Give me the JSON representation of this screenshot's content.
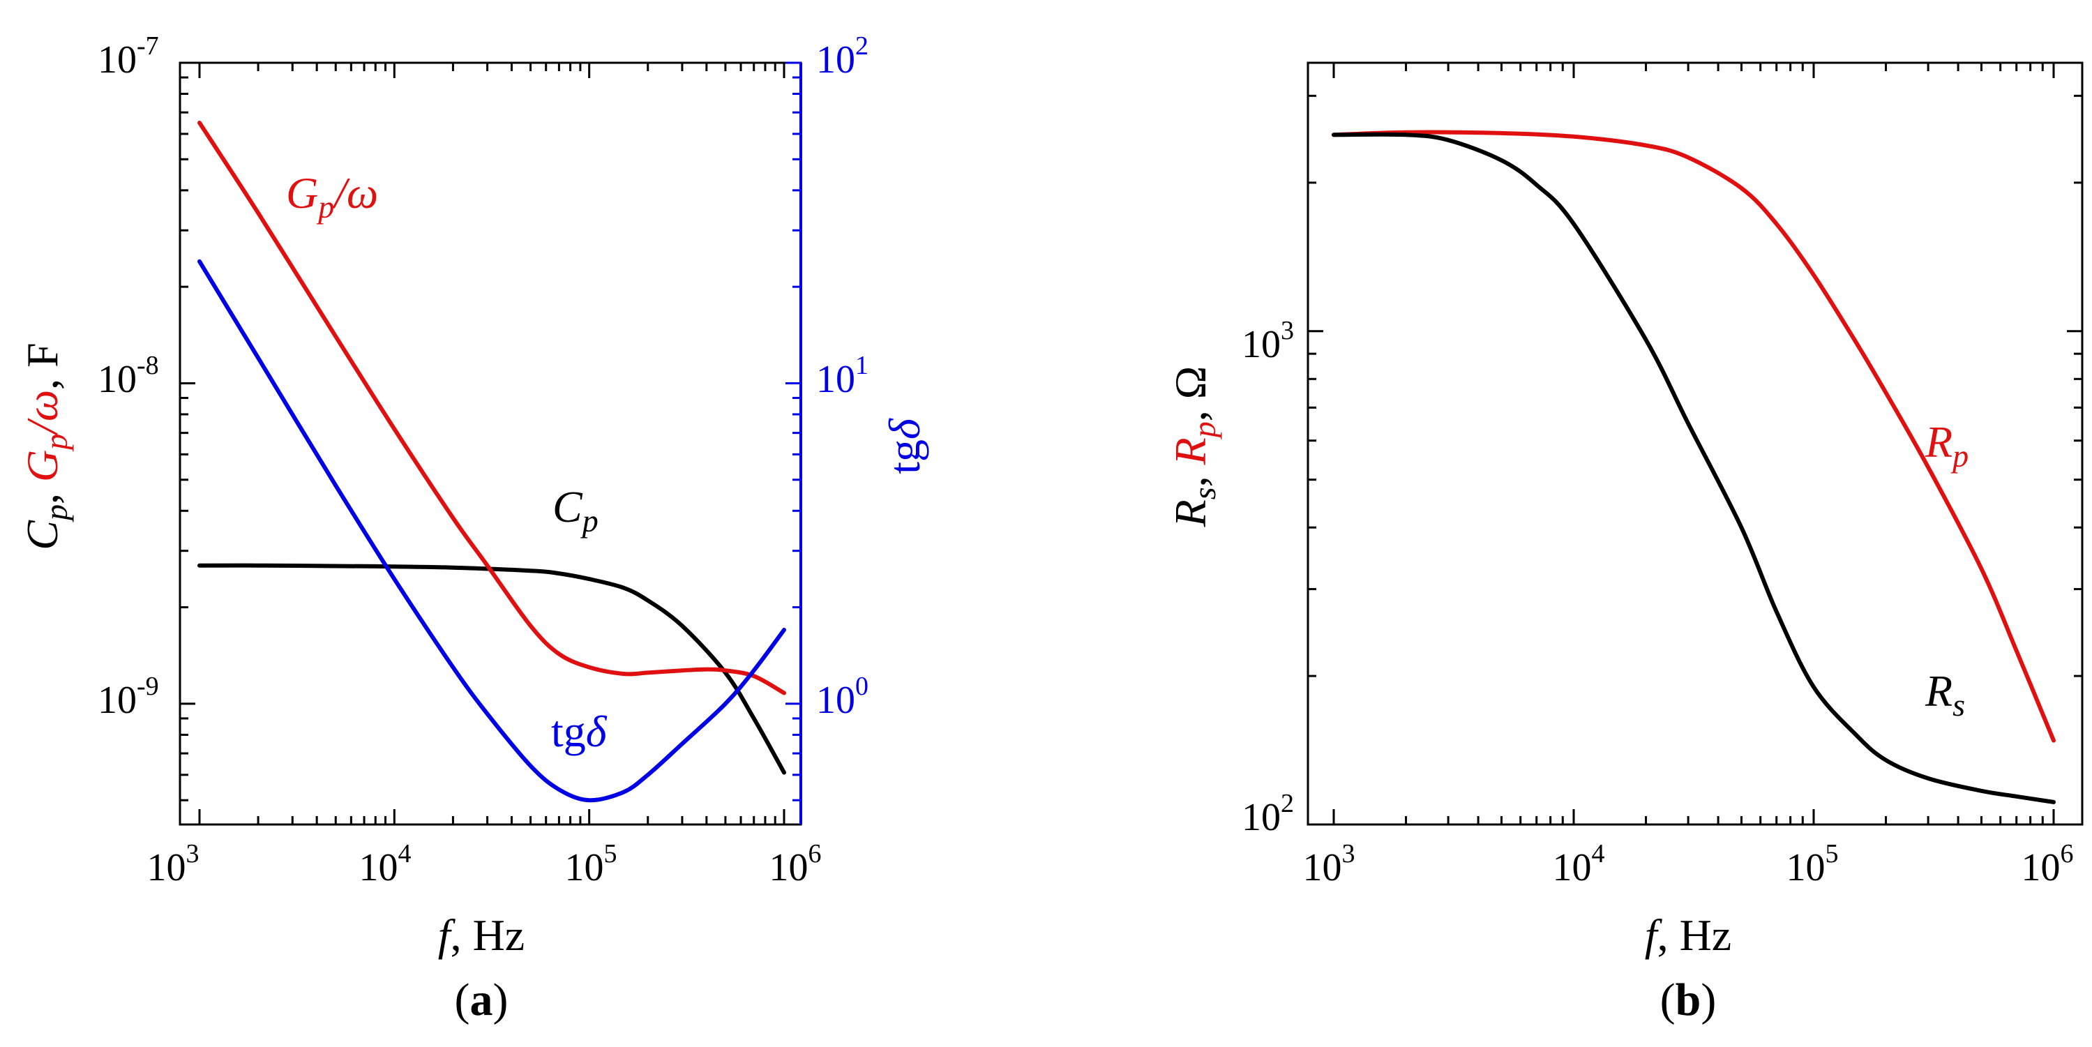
{
  "figure": {
    "panel_labels": [
      {
        "open": "(",
        "letter": "a",
        "close": ")"
      },
      {
        "open": "(",
        "letter": "b",
        "close": ")"
      }
    ]
  },
  "colors": {
    "black": "#000000",
    "red": "#e01010",
    "blue": "#0000e6"
  },
  "chart_data": [
    {
      "panel": "a",
      "type": "line",
      "x_scale": "log",
      "y_scale": "log",
      "y2_scale": "log",
      "xlim": [
        1000,
        1000000
      ],
      "ylim": [
        4.2e-10,
        1e-07
      ],
      "y2lim": [
        0.42,
        100
      ],
      "x_ticks": [
        {
          "value": 1000,
          "base": "10",
          "exp": "3"
        },
        {
          "value": 10000,
          "base": "10",
          "exp": "4"
        },
        {
          "value": 100000,
          "base": "10",
          "exp": "5"
        },
        {
          "value": 1000000,
          "base": "10",
          "exp": "6"
        }
      ],
      "y_ticks": [
        {
          "value": 1e-09,
          "base": "10",
          "exp": "-9"
        },
        {
          "value": 1e-08,
          "base": "10",
          "exp": "-8"
        },
        {
          "value": 1e-07,
          "base": "10",
          "exp": "-7"
        }
      ],
      "y2_ticks": [
        {
          "value": 1,
          "base": "10",
          "exp": "0"
        },
        {
          "value": 10,
          "base": "10",
          "exp": "1"
        },
        {
          "value": 100,
          "base": "10",
          "exp": "2"
        }
      ],
      "xlabel": {
        "var": "f",
        "rest": ", Hz"
      },
      "ylabel": {
        "c_main": "C",
        "c_sub": "p",
        "sep1": ", ",
        "g_main": "G",
        "g_sub": "p",
        "g_over": "/ω",
        "sep2": ", ",
        "unit": "F"
      },
      "y2label": {
        "main": "tg",
        "greek": "δ"
      },
      "series": [
        {
          "key": "Cp",
          "label_main": "C",
          "label_sub": "p",
          "color": "#000000",
          "axis": "left",
          "x": [
            1000,
            2000,
            5000,
            10000,
            20000,
            50000,
            70000,
            100000,
            150000,
            200000,
            300000,
            500000,
            700000,
            1000000
          ],
          "y": [
            2.7e-09,
            2.7e-09,
            2.69e-09,
            2.68e-09,
            2.66e-09,
            2.6e-09,
            2.55e-09,
            2.45e-09,
            2.3e-09,
            2.1e-09,
            1.75e-09,
            1.25e-09,
            9e-10,
            6.1e-10
          ]
        },
        {
          "key": "Gp_omega",
          "label_main": "G",
          "label_sub": "p",
          "label_rest": "/ω",
          "color": "#e01010",
          "axis": "left",
          "x": [
            1000,
            2000,
            5000,
            10000,
            20000,
            30000,
            50000,
            70000,
            100000,
            150000,
            200000,
            300000,
            400000,
            500000,
            700000,
            1000000
          ],
          "y": [
            6.5e-08,
            3.4e-08,
            1.4e-08,
            7.2e-09,
            3.8e-09,
            2.7e-09,
            1.75e-09,
            1.43e-09,
            1.3e-09,
            1.24e-09,
            1.25e-09,
            1.27e-09,
            1.28e-09,
            1.27e-09,
            1.22e-09,
            1.08e-09
          ]
        },
        {
          "key": "tg_delta",
          "label_main": "tg",
          "label_greek": "δ",
          "color": "#0000e6",
          "axis": "right",
          "x": [
            1000,
            2000,
            5000,
            10000,
            20000,
            30000,
            50000,
            70000,
            100000,
            150000,
            200000,
            300000,
            500000,
            700000,
            1000000
          ],
          "y": [
            24,
            12,
            4.8,
            2.45,
            1.3,
            0.93,
            0.64,
            0.54,
            0.5,
            0.53,
            0.6,
            0.75,
            1.0,
            1.27,
            1.7
          ]
        }
      ]
    },
    {
      "panel": "b",
      "type": "line",
      "x_scale": "log",
      "y_scale": "log",
      "xlim": [
        1000,
        1000000
      ],
      "ylim": [
        100,
        3500
      ],
      "x_ticks": [
        {
          "value": 1000,
          "base": "10",
          "exp": "3"
        },
        {
          "value": 10000,
          "base": "10",
          "exp": "4"
        },
        {
          "value": 100000,
          "base": "10",
          "exp": "5"
        },
        {
          "value": 1000000,
          "base": "10",
          "exp": "6"
        }
      ],
      "y_ticks": [
        {
          "value": 100,
          "base": "10",
          "exp": "2"
        },
        {
          "value": 1000,
          "base": "10",
          "exp": "3"
        }
      ],
      "xlabel": {
        "var": "f",
        "rest": ", Hz"
      },
      "ylabel": {
        "rs_main": "R",
        "rs_sub": "s",
        "sep1": ", ",
        "rp_main": "R",
        "rp_sub": "p",
        "sep2": ", ",
        "unit": "Ω"
      },
      "series": [
        {
          "key": "Rp",
          "label_main": "R",
          "label_sub": "p",
          "color": "#e01010",
          "x": [
            1000,
            2000,
            5000,
            10000,
            20000,
            30000,
            50000,
            70000,
            100000,
            150000,
            200000,
            300000,
            500000,
            700000,
            1000000
          ],
          "y": [
            2500,
            2530,
            2520,
            2480,
            2380,
            2250,
            1950,
            1650,
            1300,
            950,
            750,
            530,
            330,
            225,
            148
          ]
        },
        {
          "key": "Rs",
          "label_main": "R",
          "label_sub": "s",
          "color": "#000000",
          "x": [
            1000,
            2000,
            3000,
            5000,
            7000,
            10000,
            20000,
            30000,
            50000,
            70000,
            100000,
            150000,
            200000,
            300000,
            500000,
            700000,
            1000000
          ],
          "y": [
            2500,
            2500,
            2440,
            2220,
            1980,
            1650,
            960,
            650,
            400,
            270,
            190,
            152,
            135,
            124,
            117,
            114,
            111
          ]
        }
      ]
    }
  ]
}
